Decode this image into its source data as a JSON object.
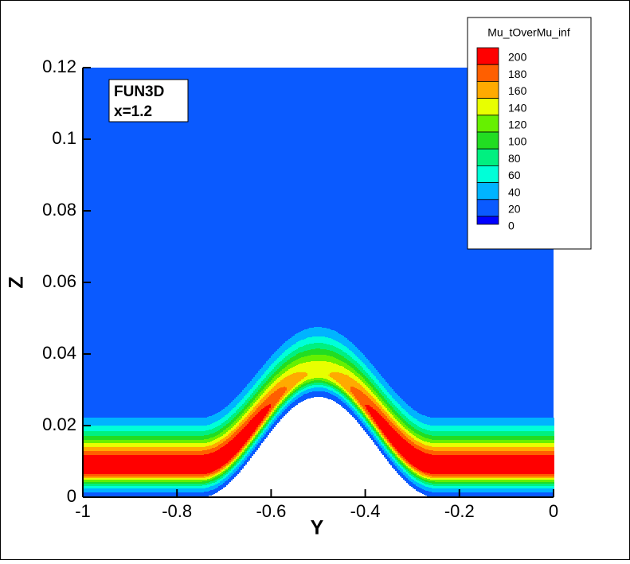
{
  "chart_data": {
    "type": "contour",
    "xlabel": "Y",
    "ylabel": "Z",
    "xlim": [
      -1,
      0
    ],
    "ylim": [
      0,
      0.12
    ],
    "xticks": [
      -1,
      -0.8,
      -0.6,
      -0.4,
      -0.2,
      0
    ],
    "yticks": [
      0,
      0.02,
      0.04,
      0.06,
      0.08,
      0.1,
      0.12
    ],
    "annotation": [
      "FUN3D",
      "x=1.2"
    ],
    "legend_title": "Mu_tOverMu_inf",
    "legend_position": "upper right",
    "levels": [
      200,
      180,
      160,
      140,
      120,
      100,
      80,
      60,
      40,
      20,
      0
    ],
    "level_colors": [
      "#ff0000",
      "#ff5f00",
      "#ffaa00",
      "#e8ff00",
      "#66f000",
      "#22dd22",
      "#00f080",
      "#00ffd8",
      "#00b4ff",
      "#0a5aff",
      "#0000ff"
    ]
  }
}
